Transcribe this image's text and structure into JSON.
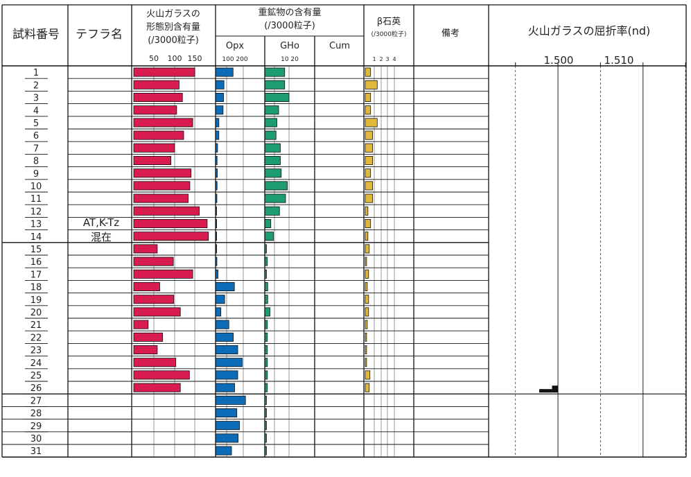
{
  "chart_data": {
    "type": "bar",
    "headers": {
      "sample_no": "試料番号",
      "tephra": "テフラ名",
      "glass_1": "火山ガラスの",
      "glass_2": "形態別含有量",
      "glass_3": "(/3000粒子)",
      "glass_ticks": [
        "50",
        "100",
        "150"
      ],
      "heavy_1": "重鉱物の含有量",
      "heavy_2": "(/3000粒子)",
      "opx": "Opx",
      "opx_ticks": "100 200",
      "gho": "GHo",
      "gho_ticks": "10   20",
      "cum": "Cum",
      "quartz_1": "β石英",
      "quartz_2": "(/3000粒子)",
      "quartz_ticks": [
        "1",
        "2",
        "3",
        "4"
      ],
      "remarks": "備考",
      "ri_title": "火山ガラスの屈折率(nd)",
      "ri_ticks": [
        "1.500",
        "1.510"
      ]
    },
    "tephra_label": [
      "AT,K-Tz",
      "混在"
    ],
    "samples": [
      "1",
      "2",
      "3",
      "4",
      "5",
      "6",
      "7",
      "8",
      "9",
      "10",
      "11",
      "12",
      "13",
      "14",
      "15",
      "16",
      "17",
      "18",
      "19",
      "20",
      "21",
      "22",
      "23",
      "24",
      "25",
      "26",
      "27",
      "28",
      "29",
      "30",
      "31"
    ],
    "series": [
      {
        "name": "火山ガラス",
        "color": "#d81c4f",
        "xlim": [
          0,
          200
        ],
        "values": [
          148,
          110,
          118,
          104,
          143,
          121,
          99,
          90,
          139,
          136,
          132,
          159,
          178,
          181,
          57,
          96,
          143,
          63,
          97,
          113,
          35,
          70,
          57,
          102,
          135,
          113,
          null,
          null,
          null,
          null,
          null
        ]
      },
      {
        "name": "Opx",
        "color": "#0d6cb8",
        "xlim": [
          0,
          250
        ],
        "values": [
          79,
          38,
          36,
          34,
          15,
          15,
          9,
          7,
          8,
          7,
          6,
          4,
          5,
          5,
          5,
          6,
          11,
          85,
          41,
          24,
          60,
          80,
          100,
          120,
          100,
          86,
          135,
          96,
          108,
          102,
          72
        ]
      },
      {
        "name": "GHo",
        "color": "#1d9c73",
        "xlim": [
          0,
          25
        ],
        "values": [
          11.5,
          11.5,
          14,
          8,
          7,
          6.5,
          9,
          9,
          9.5,
          13,
          12,
          8.5,
          3.5,
          5,
          1,
          1.5,
          1,
          1.7,
          1.7,
          3,
          1.5,
          1.5,
          1.5,
          1.5,
          1.5,
          1.5,
          1,
          1,
          1,
          1,
          1
        ]
      },
      {
        "name": "Cum",
        "values": [
          null,
          null,
          null,
          null,
          null,
          null,
          null,
          null,
          null,
          null,
          null,
          null,
          null,
          null,
          null,
          null,
          null,
          null,
          null,
          null,
          null,
          null,
          null,
          null,
          null,
          null,
          null,
          null,
          null,
          null,
          null
        ]
      },
      {
        "name": "β石英",
        "color": "#e0b83c",
        "xlim": [
          0,
          5
        ],
        "values": [
          0.8,
          1.8,
          0.8,
          0.8,
          1.8,
          1.1,
          1.1,
          1.1,
          0.8,
          1.1,
          1.1,
          0.4,
          0.8,
          0.4,
          0.6,
          0.2,
          0.5,
          0.3,
          0.5,
          0.5,
          0.3,
          0.2,
          0.2,
          0.2,
          0.7,
          0.6,
          null,
          null,
          null,
          null,
          null
        ]
      }
    ],
    "refractive_index": {
      "xlim": [
        1.4925,
        1.5145
      ],
      "gridlines": [
        1.495,
        1.5,
        1.505,
        1.51,
        1.515
      ],
      "sample_26_histogram": [
        {
          "from": 1.4978,
          "to": 1.4993,
          "count": 1
        },
        {
          "from": 1.4993,
          "to": 1.5,
          "count": 2
        }
      ]
    }
  }
}
